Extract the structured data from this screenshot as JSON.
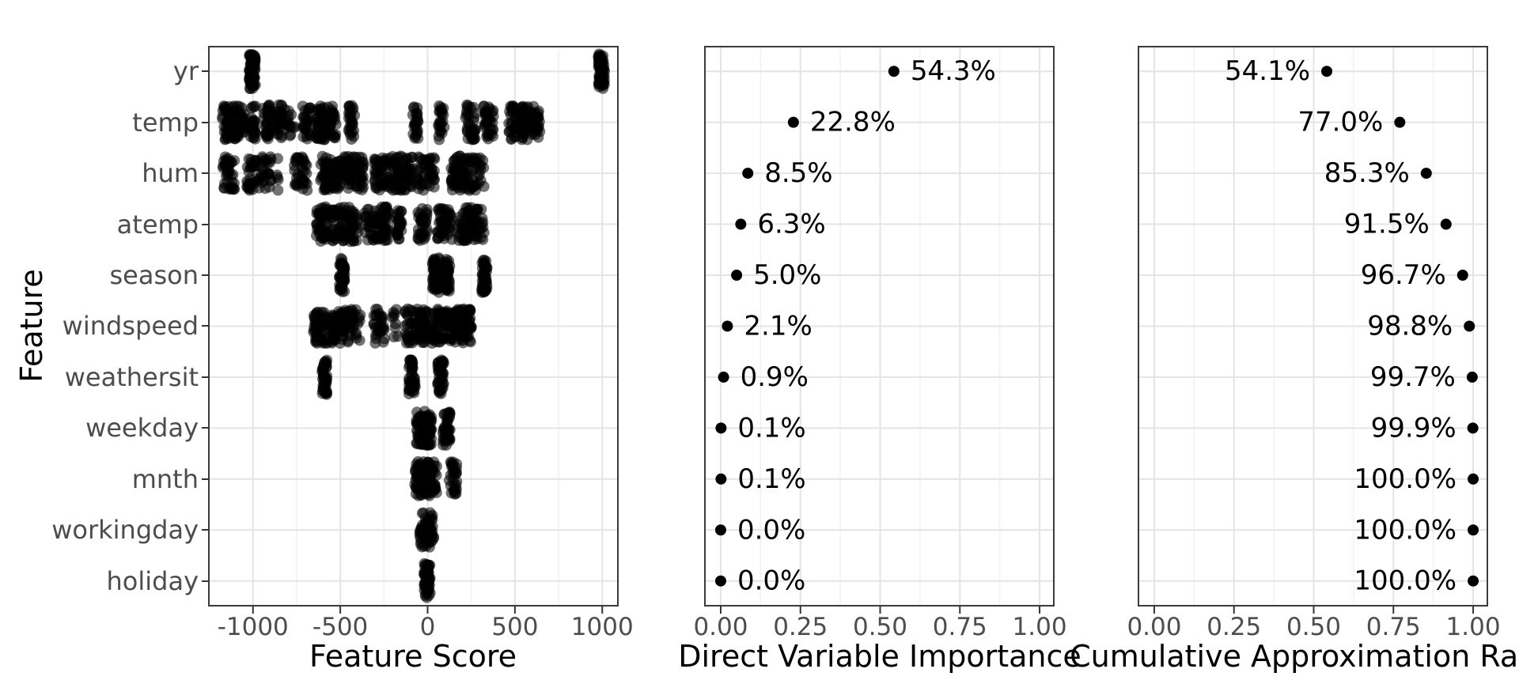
{
  "y_axis": {
    "title": "Feature",
    "categories": [
      "yr",
      "temp",
      "hum",
      "atemp",
      "season",
      "windspeed",
      "weathersit",
      "weekday",
      "mnth",
      "workingday",
      "holiday"
    ]
  },
  "styles": {
    "background": "#ffffff",
    "panel_border": "#3b3b3b",
    "grid_major": "#e4e4e4",
    "grid_minor": "#f1f1f1",
    "tick_mark_color": "#333333",
    "tick_label_color": "#4d4d4d",
    "axis_title_color": "#000000",
    "point_color": "#000000",
    "point_label_color": "#000000"
  },
  "chart_data": [
    {
      "type": "scatter",
      "subtype": "jitter-strip",
      "title": "",
      "xlabel": "Feature Score",
      "ylabel": "Feature",
      "grid": true,
      "xlim": [
        -1257,
        1094
      ],
      "x_ticks": [
        -1000,
        -500,
        0,
        500,
        1000
      ],
      "x_tick_labels": [
        "-1000",
        "-500",
        "0",
        "500",
        "1000"
      ],
      "x_minor_ticks": [
        -1250,
        -750,
        -250,
        250,
        750
      ],
      "categories": [
        "yr",
        "temp",
        "hum",
        "atemp",
        "season",
        "windspeed",
        "weathersit",
        "weekday",
        "mnth",
        "workingday",
        "holiday"
      ],
      "clusters_note": "per category: [center, half_width, n_points] in Feature Score units",
      "clusters": [
        [
          [
            -1004,
            18,
            70
          ],
          [
            995,
            18,
            70
          ]
        ],
        [
          [
            -1110,
            68,
            90
          ],
          [
            -1000,
            14,
            30
          ],
          [
            -920,
            24,
            30
          ],
          [
            -858,
            24,
            30
          ],
          [
            -790,
            30,
            16
          ],
          [
            -695,
            30,
            28
          ],
          [
            -580,
            56,
            80
          ],
          [
            -438,
            20,
            26
          ],
          [
            -70,
            16,
            24
          ],
          [
            75,
            20,
            22
          ],
          [
            245,
            30,
            34
          ],
          [
            348,
            30,
            34
          ],
          [
            555,
            92,
            95
          ]
        ],
        [
          [
            -1140,
            34,
            38
          ],
          [
            -965,
            70,
            60
          ],
          [
            -858,
            8,
            5
          ],
          [
            -725,
            40,
            36
          ],
          [
            -490,
            124,
            130
          ],
          [
            -195,
            110,
            120
          ],
          [
            -10,
            50,
            45
          ],
          [
            225,
            98,
            95
          ]
        ],
        [
          [
            -605,
            32,
            48
          ],
          [
            -535,
            14,
            24
          ],
          [
            -455,
            55,
            65
          ],
          [
            -290,
            74,
            80
          ],
          [
            -165,
            16,
            26
          ],
          [
            -30,
            27,
            32
          ],
          [
            100,
            45,
            48
          ],
          [
            250,
            74,
            75
          ]
        ],
        [
          [
            -490,
            16,
            45
          ],
          [
            48,
            20,
            50
          ],
          [
            113,
            14,
            42
          ],
          [
            325,
            16,
            45
          ]
        ],
        [
          [
            -640,
            16,
            26
          ],
          [
            -592,
            14,
            22
          ],
          [
            -542,
            14,
            22
          ],
          [
            -465,
            46,
            55
          ],
          [
            -398,
            14,
            9
          ],
          [
            -280,
            34,
            30
          ],
          [
            -186,
            18,
            9
          ],
          [
            60,
            192,
            230
          ]
        ],
        [
          [
            -590,
            14,
            45
          ],
          [
            -89,
            18,
            45
          ],
          [
            75,
            18,
            45
          ]
        ],
        [
          [
            -22,
            44,
            80
          ],
          [
            108,
            20,
            38
          ]
        ],
        [
          [
            -10,
            64,
            90
          ],
          [
            143,
            24,
            30
          ]
        ],
        [
          [
            -5,
            40,
            60
          ]
        ],
        [
          [
            -2,
            18,
            55
          ]
        ]
      ]
    },
    {
      "type": "scatter",
      "subtype": "dot-labeled",
      "title": "",
      "xlabel": "Direct Variable Importance",
      "grid": true,
      "xlim": [
        -0.052,
        1.047
      ],
      "x_ticks": [
        0,
        0.25,
        0.5,
        0.75,
        1.0
      ],
      "x_tick_labels": [
        "0.00",
        "0.25",
        "0.50",
        "0.75",
        "1.00"
      ],
      "x_minor_ticks": [
        0.125,
        0.375,
        0.625,
        0.875
      ],
      "categories": [
        "yr",
        "temp",
        "hum",
        "atemp",
        "season",
        "windspeed",
        "weathersit",
        "weekday",
        "mnth",
        "workingday",
        "holiday"
      ],
      "values": [
        0.543,
        0.228,
        0.085,
        0.063,
        0.05,
        0.021,
        0.009,
        0.001,
        0.001,
        0.0,
        0.0
      ],
      "point_labels": [
        "54.3%",
        "22.8%",
        "8.5%",
        "6.3%",
        "5.0%",
        "2.1%",
        "0.9%",
        "0.1%",
        "0.1%",
        "0.0%",
        "0.0%"
      ],
      "label_side": "right"
    },
    {
      "type": "scatter",
      "subtype": "dot-labeled",
      "title": "",
      "xlabel": "Cumulative Approximation Ratio",
      "grid": true,
      "xlim": [
        -0.052,
        1.047
      ],
      "x_ticks": [
        0,
        0.25,
        0.5,
        0.75,
        1.0
      ],
      "x_tick_labels": [
        "0.00",
        "0.25",
        "0.50",
        "0.75",
        "1.00"
      ],
      "x_minor_ticks": [
        0.125,
        0.375,
        0.625,
        0.875
      ],
      "categories": [
        "yr",
        "temp",
        "hum",
        "atemp",
        "season",
        "windspeed",
        "weathersit",
        "weekday",
        "mnth",
        "workingday",
        "holiday"
      ],
      "values": [
        0.541,
        0.77,
        0.853,
        0.915,
        0.967,
        0.988,
        0.997,
        0.999,
        1.0,
        1.0,
        1.0
      ],
      "point_labels": [
        "54.1%",
        "77.0%",
        "85.3%",
        "91.5%",
        "96.7%",
        "98.8%",
        "99.7%",
        "99.9%",
        "100.0%",
        "100.0%",
        "100.0%"
      ],
      "label_side": "left"
    }
  ]
}
